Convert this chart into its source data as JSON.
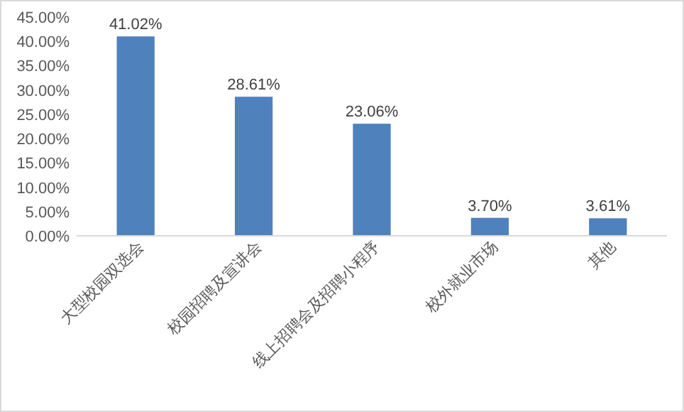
{
  "chart_data": {
    "type": "bar",
    "categories": [
      "大型校园双选会",
      "校园招聘及宣讲会",
      "线上招聘会及招聘小程序",
      "校外就业市场",
      "其他"
    ],
    "values": [
      41.02,
      28.61,
      23.06,
      3.7,
      3.61
    ],
    "value_labels": [
      "41.02%",
      "28.61%",
      "23.06%",
      "3.70%",
      "3.61%"
    ],
    "color": "#4f81bd",
    "ylim": [
      0,
      45
    ],
    "yticks": [
      {
        "value": 0,
        "label": "0.00%"
      },
      {
        "value": 5,
        "label": "5.00%"
      },
      {
        "value": 10,
        "label": "10.00%"
      },
      {
        "value": 15,
        "label": "15.00%"
      },
      {
        "value": 20,
        "label": "20.00%"
      },
      {
        "value": 25,
        "label": "25.00%"
      },
      {
        "value": 30,
        "label": "30.00%"
      },
      {
        "value": 35,
        "label": "35.00%"
      },
      {
        "value": 40,
        "label": "40.00%"
      },
      {
        "value": 45,
        "label": "45.00%"
      }
    ],
    "grid": false
  }
}
